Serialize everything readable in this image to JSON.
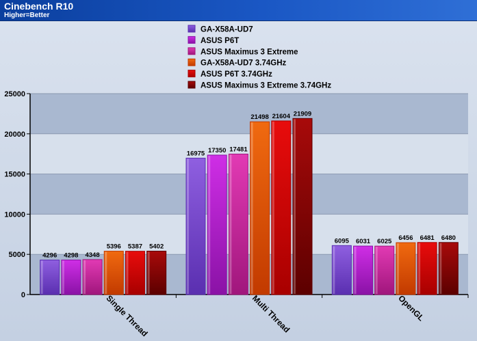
{
  "header": {
    "title": "Cinebench R10",
    "subtitle": "Higher=Better"
  },
  "colors": {
    "header_bg": "#1a57c4",
    "plot_band_dark": "#a9b8d0",
    "plot_band_light": "#d7e0ec",
    "axis": "#000000"
  },
  "chart_data": {
    "type": "bar",
    "title": "Cinebench R10",
    "subtitle": "Higher=Better",
    "xlabel": "",
    "ylabel": "",
    "categories": [
      "Single Thread",
      "Multi Thread",
      "OpenGL"
    ],
    "ylim": [
      0,
      25000
    ],
    "yticks": [
      0,
      5000,
      10000,
      15000,
      20000,
      25000
    ],
    "grid": true,
    "legend_position": "top-center",
    "series": [
      {
        "name": "GA-X58A-UD7",
        "values": [
          4296,
          16975,
          6095
        ],
        "color": "#8f5fe0",
        "color_dark": "#5a2fb0"
      },
      {
        "name": "ASUS P6T",
        "values": [
          4298,
          17350,
          6031
        ],
        "color": "#cf2ee6",
        "color_dark": "#8a12a6"
      },
      {
        "name": "ASUS Maximus 3 Extreme",
        "values": [
          4348,
          17481,
          6025
        ],
        "color": "#e23ab4",
        "color_dark": "#a0167c"
      },
      {
        "name": "GA-X58A-UD7 3.74GHz",
        "values": [
          5396,
          21498,
          6456
        ],
        "color": "#f06a10",
        "color_dark": "#c23a00"
      },
      {
        "name": "ASUS P6T 3.74GHz",
        "values": [
          5387,
          21604,
          6481
        ],
        "color": "#e80c0c",
        "color_dark": "#a80000"
      },
      {
        "name": "ASUS Maximus 3 Extreme 3.74GHz",
        "values": [
          5402,
          21909,
          6480
        ],
        "color": "#a80a0a",
        "color_dark": "#5c0000"
      }
    ]
  }
}
